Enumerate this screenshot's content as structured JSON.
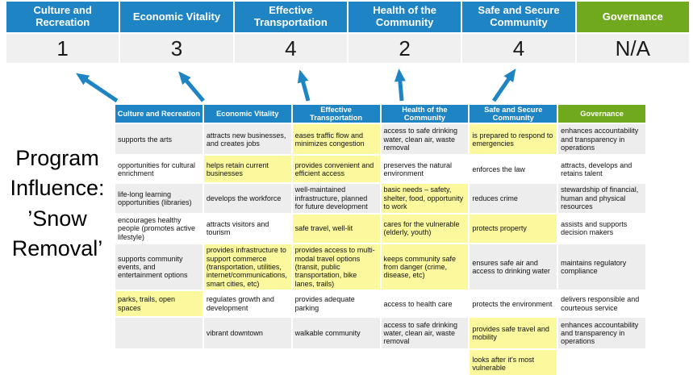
{
  "colors": {
    "blue": "#1E84C4",
    "green": "#70A81E",
    "highlight": "#FBF89E",
    "row_gray": "#EDEDED",
    "score_bg": "#F0F0F0",
    "arrow": "#1E84C4"
  },
  "program_label": {
    "lines": [
      "Program",
      "Influence:",
      "’Snow",
      "Removal’"
    ]
  },
  "summary": {
    "columns": [
      {
        "label": "Culture and Recreation",
        "score": "1"
      },
      {
        "label": "Economic Vitality",
        "score": "3"
      },
      {
        "label": "Effective Transportation",
        "score": "4"
      },
      {
        "label": "Health of the Community",
        "score": "2"
      },
      {
        "label": "Safe and Secure Community",
        "score": "4"
      },
      {
        "label": "Governance",
        "score": "N/A"
      }
    ]
  },
  "arrows": {
    "count": 5,
    "color": "#1E84C4"
  },
  "matrix": {
    "headers": [
      "Culture and Recreation",
      "Economic Vitality",
      "Effective Transportation",
      "Health of the Community",
      "Safe and Secure Community",
      "Governance"
    ],
    "rows": [
      {
        "cells": [
          {
            "text": "supports the arts",
            "highlight": false
          },
          {
            "text": "attracts new businesses, and creates jobs",
            "highlight": false
          },
          {
            "text": "eases traffic flow and minimizes congestion",
            "highlight": true
          },
          {
            "text": "access to safe drinking water, clean air, waste removal",
            "highlight": false
          },
          {
            "text": "is prepared to respond to emergencies",
            "highlight": true
          },
          {
            "text": "enhances accountability and transparency in operations",
            "highlight": false
          }
        ]
      },
      {
        "cells": [
          {
            "text": "opportunities for cultural enrichment",
            "highlight": false
          },
          {
            "text": "helps retain current businesses",
            "highlight": true
          },
          {
            "text": "provides convenient and efficient access",
            "highlight": true
          },
          {
            "text": "preserves the natural environment",
            "highlight": false
          },
          {
            "text": "enforces the law",
            "highlight": false
          },
          {
            "text": "attracts, develops and retains talent",
            "highlight": false
          }
        ]
      },
      {
        "cells": [
          {
            "text": "life-long learning opportunities (libraries)",
            "highlight": false
          },
          {
            "text": "develops the workforce",
            "highlight": false
          },
          {
            "text": "well-maintained infrastructure, planned for future development",
            "highlight": false
          },
          {
            "text": "basic needs – safety, shelter, food, opportunity to work",
            "highlight": true
          },
          {
            "text": "reduces crime",
            "highlight": false
          },
          {
            "text": "stewardship of financial, human and physical resources",
            "highlight": false
          }
        ]
      },
      {
        "cells": [
          {
            "text": "encourages healthy people (promotes active lifestyle)",
            "highlight": false
          },
          {
            "text": "attracts visitors and tourism",
            "highlight": false
          },
          {
            "text": "safe travel, well-lit",
            "highlight": true
          },
          {
            "text": "cares for the vulnerable (elderly, youth)",
            "highlight": true
          },
          {
            "text": "protects property",
            "highlight": true
          },
          {
            "text": "assists and supports decision makers",
            "highlight": false
          }
        ]
      },
      {
        "cells": [
          {
            "text": "supports community events, and entertainment options",
            "highlight": false
          },
          {
            "text": "provides infrastructure to support commerce (transportation, utilities, internet/communications, smart cities, etc)",
            "highlight": true
          },
          {
            "text": "provides access to multi-modal travel options (transit, public transportation, bike lanes, trails)",
            "highlight": true
          },
          {
            "text": "keeps community safe from danger (crime, disease, etc)",
            "highlight": true
          },
          {
            "text": "ensures safe air and access to drinking water",
            "highlight": false
          },
          {
            "text": "maintains regulatory compliance",
            "highlight": false
          }
        ]
      },
      {
        "cells": [
          {
            "text": "parks, trails, open spaces",
            "highlight": true
          },
          {
            "text": "regulates growth and development",
            "highlight": false
          },
          {
            "text": "provides adequate parking",
            "highlight": false
          },
          {
            "text": "access to health care",
            "highlight": false
          },
          {
            "text": "protects the environment",
            "highlight": false
          },
          {
            "text": "delivers responsible and courteous service",
            "highlight": false
          }
        ]
      },
      {
        "cells": [
          {
            "text": "",
            "highlight": false
          },
          {
            "text": "vibrant downtown",
            "highlight": false
          },
          {
            "text": "walkable community",
            "highlight": false
          },
          {
            "text": "access to safe drinking water, clean air, waste removal",
            "highlight": false
          },
          {
            "text": "provides safe travel and mobility",
            "highlight": true
          },
          {
            "text": "enhances accountability and transparency in operations",
            "highlight": false
          }
        ]
      },
      {
        "cells": [
          {
            "text": "",
            "highlight": false
          },
          {
            "text": "",
            "highlight": false
          },
          {
            "text": "",
            "highlight": false
          },
          {
            "text": "",
            "highlight": false
          },
          {
            "text": "looks after it's most vulnerable",
            "highlight": true
          },
          {
            "text": "",
            "highlight": false
          }
        ]
      }
    ]
  }
}
